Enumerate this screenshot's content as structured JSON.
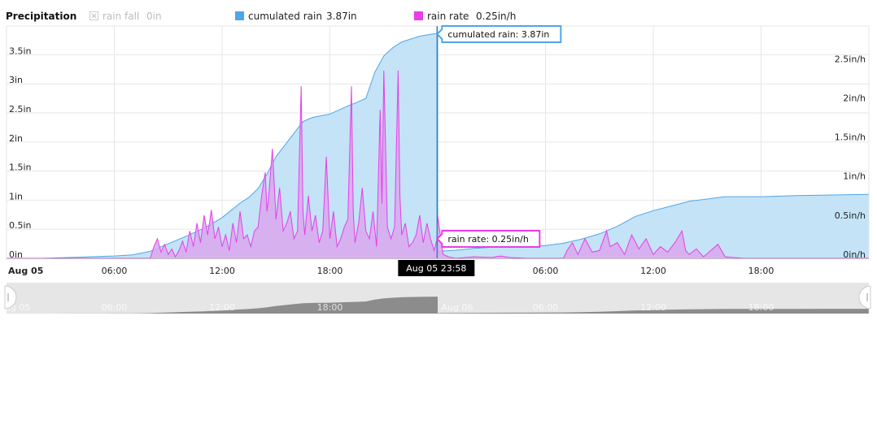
{
  "chart_data": {
    "type": "area",
    "title": "Precipitation",
    "legend": {
      "placement": "top",
      "items": [
        {
          "name": "rain fall",
          "value": "0in",
          "color": "#cccccc",
          "enabled": false
        },
        {
          "name": "cumulated rain",
          "value": "3.87in",
          "color": "#4da6e8",
          "enabled": true
        },
        {
          "name": "rain rate",
          "value": "0.25in/h",
          "color": "#e83de8",
          "enabled": true
        }
      ]
    },
    "x_axis": {
      "type": "time",
      "range": [
        "2024-08-05 00:00",
        "2024-08-06 23:59"
      ],
      "ticks": [
        {
          "t": 0,
          "label": "Aug 05",
          "bold": true
        },
        {
          "t": 6,
          "label": "06:00"
        },
        {
          "t": 12,
          "label": "12:00"
        },
        {
          "t": 18,
          "label": "18:00"
        },
        {
          "t": 24,
          "label": ""
        },
        {
          "t": 30,
          "label": "06:00"
        },
        {
          "t": 36,
          "label": "12:00"
        },
        {
          "t": 42,
          "label": "18:00"
        }
      ]
    },
    "y_axis_left": {
      "unit": "in",
      "range": [
        0,
        4
      ],
      "ticks": [
        "0in",
        "0.5in",
        "1in",
        "1.5in",
        "2in",
        "2.5in",
        "3in",
        "3.5in"
      ]
    },
    "y_axis_right": {
      "unit": "in/h",
      "range": [
        0,
        3
      ],
      "ticks": [
        "0in/h",
        "0.5in/h",
        "1in/h",
        "1.5in/h",
        "2in/h",
        "2.5in/h"
      ]
    },
    "grid": true,
    "series": [
      {
        "name": "cumulated rain",
        "axis": "left",
        "color": "#4da6e8",
        "fill": "#c4e3f7",
        "points": [
          [
            0,
            0
          ],
          [
            2,
            0
          ],
          [
            4,
            0.02
          ],
          [
            6,
            0.04
          ],
          [
            7,
            0.06
          ],
          [
            8,
            0.12
          ],
          [
            9,
            0.25
          ],
          [
            10,
            0.38
          ],
          [
            11,
            0.52
          ],
          [
            12,
            0.7
          ],
          [
            13,
            0.95
          ],
          [
            13.5,
            1.05
          ],
          [
            14,
            1.2
          ],
          [
            14.5,
            1.45
          ],
          [
            15,
            1.75
          ],
          [
            15.5,
            1.95
          ],
          [
            16,
            2.15
          ],
          [
            16.5,
            2.35
          ],
          [
            17,
            2.42
          ],
          [
            18,
            2.48
          ],
          [
            18.5,
            2.55
          ],
          [
            19,
            2.62
          ],
          [
            19.5,
            2.68
          ],
          [
            20,
            2.75
          ],
          [
            20.5,
            3.2
          ],
          [
            21,
            3.48
          ],
          [
            21.5,
            3.62
          ],
          [
            22,
            3.72
          ],
          [
            23,
            3.82
          ],
          [
            24,
            3.87
          ],
          [
            24,
            0.12
          ],
          [
            25,
            0.14
          ],
          [
            26,
            0.17
          ],
          [
            27,
            0.19
          ],
          [
            28,
            0.2
          ],
          [
            29,
            0.2
          ],
          [
            30,
            0.22
          ],
          [
            31,
            0.26
          ],
          [
            32,
            0.33
          ],
          [
            33,
            0.42
          ],
          [
            34,
            0.55
          ],
          [
            35,
            0.72
          ],
          [
            36,
            0.82
          ],
          [
            37,
            0.9
          ],
          [
            38,
            0.98
          ],
          [
            39,
            1.02
          ],
          [
            40,
            1.06
          ],
          [
            41,
            1.06
          ],
          [
            42,
            1.06
          ],
          [
            44,
            1.08
          ],
          [
            47.99,
            1.1
          ]
        ]
      },
      {
        "name": "rain rate",
        "axis": "right",
        "color": "#e83de8",
        "fill": "#dba7ef",
        "points": [
          [
            0,
            0
          ],
          [
            8,
            0
          ],
          [
            8.2,
            0.15
          ],
          [
            8.4,
            0.25
          ],
          [
            8.6,
            0.08
          ],
          [
            8.8,
            0.18
          ],
          [
            9,
            0.05
          ],
          [
            9.2,
            0.12
          ],
          [
            9.4,
            0.02
          ],
          [
            9.6,
            0.1
          ],
          [
            9.8,
            0.22
          ],
          [
            10,
            0.08
          ],
          [
            10.2,
            0.35
          ],
          [
            10.4,
            0.15
          ],
          [
            10.6,
            0.45
          ],
          [
            10.8,
            0.2
          ],
          [
            11,
            0.55
          ],
          [
            11.2,
            0.3
          ],
          [
            11.4,
            0.62
          ],
          [
            11.6,
            0.25
          ],
          [
            11.8,
            0.4
          ],
          [
            12,
            0.15
          ],
          [
            12.2,
            0.3
          ],
          [
            12.4,
            0.1
          ],
          [
            12.6,
            0.45
          ],
          [
            12.8,
            0.2
          ],
          [
            13,
            0.6
          ],
          [
            13.2,
            0.25
          ],
          [
            13.4,
            0.3
          ],
          [
            13.6,
            0.15
          ],
          [
            13.8,
            0.35
          ],
          [
            14,
            0.4
          ],
          [
            14.2,
            0.8
          ],
          [
            14.4,
            1.1
          ],
          [
            14.5,
            0.6
          ],
          [
            14.6,
            0.8
          ],
          [
            14.8,
            1.4
          ],
          [
            15,
            0.5
          ],
          [
            15.2,
            0.9
          ],
          [
            15.4,
            0.35
          ],
          [
            15.6,
            0.45
          ],
          [
            15.8,
            0.6
          ],
          [
            16,
            0.25
          ],
          [
            16.2,
            0.35
          ],
          [
            16.4,
            2.2
          ],
          [
            16.5,
            0.6
          ],
          [
            16.6,
            0.3
          ],
          [
            16.8,
            0.8
          ],
          [
            17,
            0.35
          ],
          [
            17.2,
            0.55
          ],
          [
            17.4,
            0.2
          ],
          [
            17.6,
            0.35
          ],
          [
            17.8,
            1.3
          ],
          [
            18,
            0.25
          ],
          [
            18.2,
            0.6
          ],
          [
            18.4,
            0.15
          ],
          [
            18.6,
            0.25
          ],
          [
            18.8,
            0.4
          ],
          [
            19,
            0.5
          ],
          [
            19.2,
            2.2
          ],
          [
            19.3,
            0.6
          ],
          [
            19.4,
            0.2
          ],
          [
            19.6,
            0.45
          ],
          [
            19.8,
            0.9
          ],
          [
            20,
            0.35
          ],
          [
            20.2,
            0.25
          ],
          [
            20.4,
            0.6
          ],
          [
            20.6,
            0.15
          ],
          [
            20.8,
            1.9
          ],
          [
            20.9,
            0.7
          ],
          [
            21,
            2.4
          ],
          [
            21.1,
            1.4
          ],
          [
            21.2,
            0.4
          ],
          [
            21.4,
            0.25
          ],
          [
            21.6,
            0.4
          ],
          [
            21.8,
            2.4
          ],
          [
            21.9,
            0.8
          ],
          [
            22,
            0.3
          ],
          [
            22.2,
            0.45
          ],
          [
            22.4,
            0.15
          ],
          [
            22.6,
            0.2
          ],
          [
            22.8,
            0.3
          ],
          [
            23,
            0.55
          ],
          [
            23.2,
            0.2
          ],
          [
            23.4,
            0.45
          ],
          [
            23.6,
            0.25
          ],
          [
            23.8,
            0.1
          ],
          [
            23.97,
            0.25
          ],
          [
            24,
            0.55
          ],
          [
            24.1,
            0.38
          ],
          [
            24.3,
            0.05
          ],
          [
            24.6,
            0.02
          ],
          [
            25,
            0
          ],
          [
            26,
            0.02
          ],
          [
            27,
            0.01
          ],
          [
            27.5,
            0.03
          ],
          [
            28,
            0.01
          ],
          [
            29,
            0
          ],
          [
            31,
            0
          ],
          [
            31.2,
            0.1
          ],
          [
            31.5,
            0.2
          ],
          [
            31.8,
            0.05
          ],
          [
            32.2,
            0.25
          ],
          [
            32.6,
            0.08
          ],
          [
            33,
            0.1
          ],
          [
            33.4,
            0.35
          ],
          [
            33.6,
            0.15
          ],
          [
            34,
            0.2
          ],
          [
            34.4,
            0.05
          ],
          [
            34.8,
            0.3
          ],
          [
            35.2,
            0.12
          ],
          [
            35.6,
            0.25
          ],
          [
            36,
            0.05
          ],
          [
            36.4,
            0.15
          ],
          [
            36.8,
            0.08
          ],
          [
            37.2,
            0.2
          ],
          [
            37.6,
            0.35
          ],
          [
            37.8,
            0.1
          ],
          [
            38,
            0.05
          ],
          [
            38.4,
            0.12
          ],
          [
            38.8,
            0.02
          ],
          [
            39.2,
            0.1
          ],
          [
            39.6,
            0.18
          ],
          [
            40,
            0.02
          ],
          [
            41,
            0
          ],
          [
            47.99,
            0
          ]
        ]
      }
    ],
    "crosshair": {
      "t": 23.97
    },
    "tooltips": {
      "cumulated": "cumulated rain: 3.87in",
      "rate": "rain rate: 0.25in/h",
      "time": "Aug 05 23:58"
    },
    "navigator": {
      "labels": [
        {
          "t": 0,
          "label": "Aug 05"
        },
        {
          "t": 6,
          "label": "06:00"
        },
        {
          "t": 12,
          "label": "12:00"
        },
        {
          "t": 18,
          "label": "18:00"
        },
        {
          "t": 24,
          "label": "Aug 06"
        },
        {
          "t": 30,
          "label": "06:00"
        },
        {
          "t": 36,
          "label": "12:00"
        },
        {
          "t": 42,
          "label": "18:00"
        }
      ]
    }
  }
}
